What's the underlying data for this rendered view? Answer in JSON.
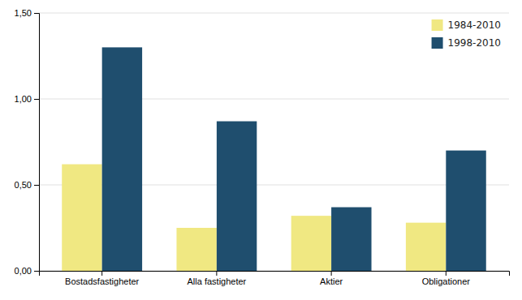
{
  "chart_data": {
    "type": "bar",
    "categories": [
      "Bostadsfastigheter",
      "Alla fastigheter",
      "Aktier",
      "Obligationer"
    ],
    "series": [
      {
        "name": "1984-2010",
        "color": "#f0e882",
        "values": [
          0.62,
          0.25,
          0.32,
          0.28
        ]
      },
      {
        "name": "1998-2010",
        "color": "#1f4e6e",
        "values": [
          1.3,
          0.87,
          0.37,
          0.7
        ]
      }
    ],
    "ylim": [
      0,
      1.5
    ],
    "yticks": [
      {
        "value": 0.0,
        "label": "0,00"
      },
      {
        "value": 0.5,
        "label": "0,50"
      },
      {
        "value": 1.0,
        "label": "1,00"
      },
      {
        "value": 1.5,
        "label": "1,50"
      }
    ],
    "grid": true,
    "legend": "top-right"
  }
}
